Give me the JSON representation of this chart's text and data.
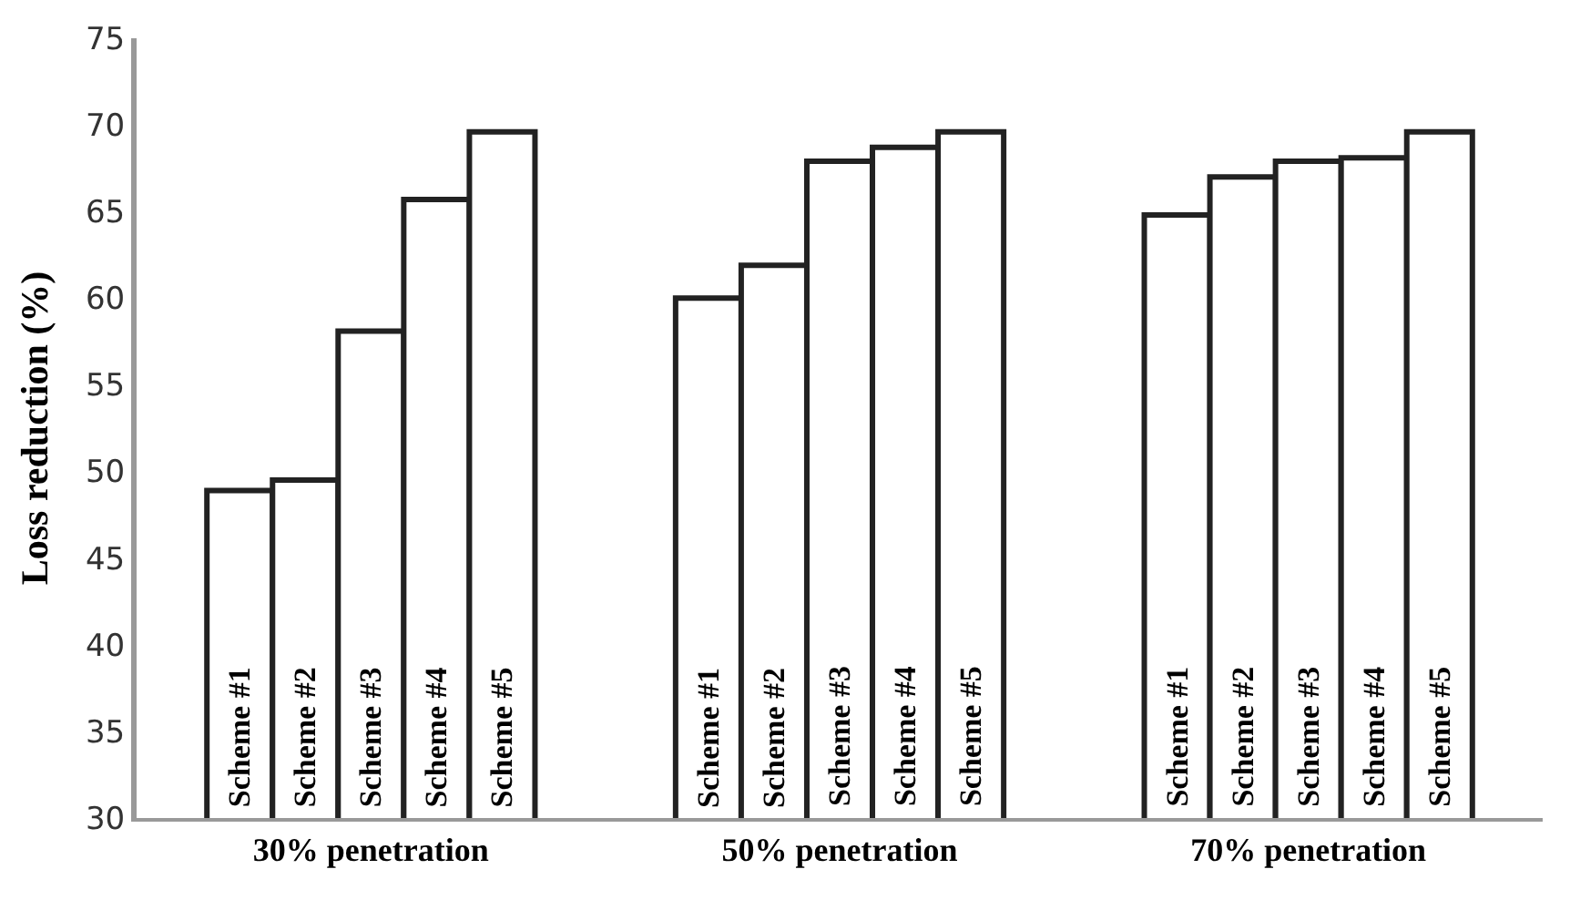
{
  "chart_data": {
    "type": "bar",
    "ylabel": "Loss reduction (%)",
    "categories": [
      "30% penetration",
      "50% penetration",
      "70% penetration"
    ],
    "series": [
      {
        "name": "Scheme #1",
        "color": "#ffffff",
        "values": [
          48.9,
          60.0,
          64.8
        ]
      },
      {
        "name": "Scheme #2",
        "color": "#ffffff",
        "values": [
          49.5,
          61.9,
          67.0
        ]
      },
      {
        "name": "Scheme #3",
        "color": "#ffffff",
        "values": [
          58.1,
          67.9,
          67.9
        ]
      },
      {
        "name": "Scheme #4",
        "color": "#ffffff",
        "values": [
          65.7,
          68.7,
          68.1
        ]
      },
      {
        "name": "Scheme #5",
        "color": "#ffffff",
        "values": [
          69.6,
          69.6,
          69.6
        ]
      }
    ],
    "ylim": [
      30,
      75
    ],
    "yticks": [
      30,
      35,
      40,
      45,
      50,
      55,
      60,
      65,
      70,
      75
    ]
  }
}
